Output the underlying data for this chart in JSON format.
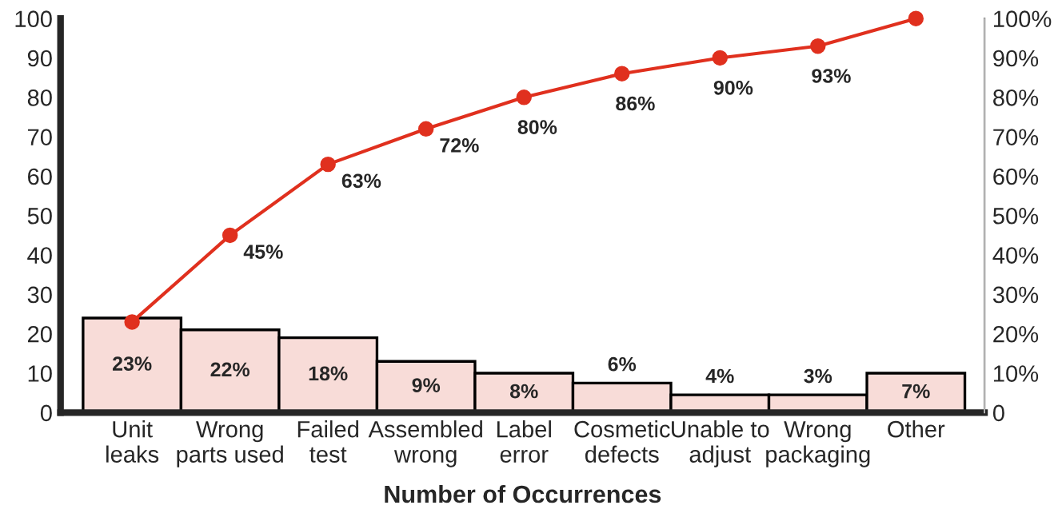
{
  "chart_data": {
    "type": "bar",
    "xlabel": "Number of Occurrences",
    "categories": [
      "Unit\nleaks",
      "Wrong\nparts used",
      "Failed\ntest",
      "Assembled\nwrong",
      "Label\nerror",
      "Cosmetic\ndefects",
      "Unable to\nadjust",
      "Wrong\npackaging",
      "Other"
    ],
    "series": [
      {
        "color": "#f8dcd8",
        "values": [
          24,
          21,
          19,
          13,
          10,
          7.5,
          4.5,
          4.5,
          10
        ]
      },
      {
        "type": "line",
        "axis": "y2",
        "color": "#e0301e",
        "values": [
          23,
          45,
          63,
          72,
          80,
          86,
          90,
          93,
          100
        ],
        "value_labels": [
          null,
          "45%",
          "63%",
          "72%",
          "80%",
          "86%",
          "90%",
          "93%",
          null
        ],
        "marker": "circle"
      }
    ],
    "ylim": [
      0,
      100
    ],
    "yticks": [
      0,
      10,
      20,
      30,
      40,
      50,
      60,
      70,
      80,
      90,
      100
    ],
    "y2lim": [
      0,
      100
    ],
    "y2ticks": [
      0,
      {
        "value": 10,
        "label": "10%"
      },
      {
        "value": 20,
        "label": "20%"
      },
      {
        "value": 30,
        "label": "30%"
      },
      {
        "value": 40,
        "label": "40%"
      },
      {
        "value": 50,
        "label": "50%"
      },
      {
        "value": 60,
        "label": "60%"
      },
      {
        "value": 70,
        "label": "70%"
      },
      {
        "value": 80,
        "label": "80%"
      },
      {
        "value": 90,
        "label": "90%"
      },
      {
        "value": 100,
        "label": "100%"
      }
    ],
    "annotations": [
      {
        "text": "23%",
        "x": "Unit\nleaks",
        "y": 24
      },
      {
        "text": "22%",
        "x": "Wrong\nparts used",
        "y": 21
      },
      {
        "text": "18%",
        "x": "Failed\ntest",
        "y": 19
      },
      {
        "text": "9%",
        "x": "Assembled\nwrong",
        "y": 13
      },
      {
        "text": "8%",
        "x": "Label\nerror",
        "y": 10
      },
      {
        "text": "6%",
        "x": "Cosmetic\ndefects",
        "y": 7.5
      },
      {
        "text": "4%",
        "x": "Unable to\nadjust",
        "y": 4.5
      },
      {
        "text": "3%",
        "x": "Wrong\npackaging",
        "y": 4.5
      },
      {
        "text": "7%",
        "x": "Other",
        "y": 10
      }
    ],
    "grid": false,
    "legend": false
  }
}
